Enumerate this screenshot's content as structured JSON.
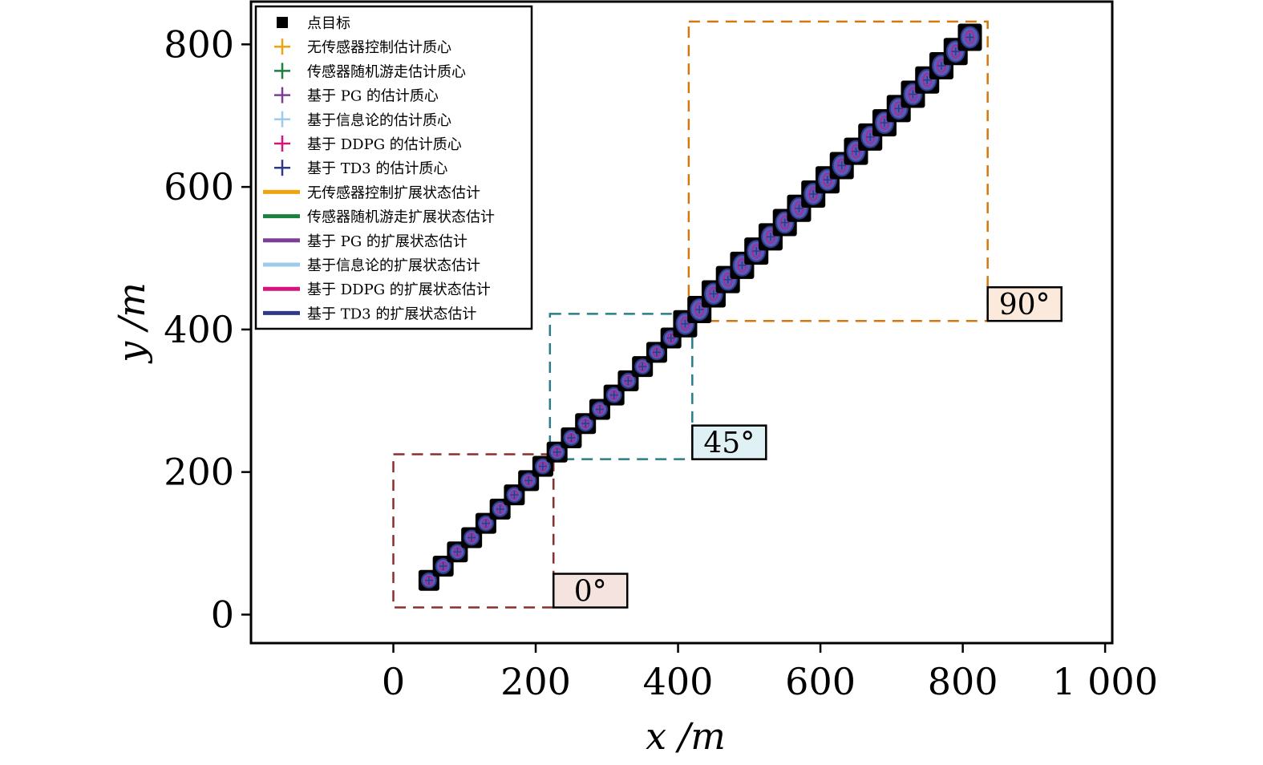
{
  "chart_data": {
    "type": "scatter",
    "xlabel": "x /m",
    "ylabel": "y /m",
    "xlim": [
      -200,
      1010
    ],
    "ylim": [
      -40,
      860
    ],
    "xticks": [
      0,
      200,
      400,
      600,
      800,
      1000
    ],
    "xtick_labels": [
      "0",
      "200",
      "400",
      "600",
      "800",
      "1 000"
    ],
    "yticks": [
      0,
      200,
      400,
      600,
      800
    ],
    "ytick_labels": [
      "0",
      "200",
      "400",
      "600",
      "800"
    ],
    "grid": false,
    "legend_position": "top-left",
    "legend": [
      {
        "label": "点目标",
        "marker": "square",
        "color": "#000000"
      },
      {
        "label": "无传感器控制估计质心",
        "marker": "plus",
        "color": "#f0a30a"
      },
      {
        "label": "传感器随机游走估计质心",
        "marker": "plus",
        "color": "#1a8040"
      },
      {
        "label": "基于 PG 的估计质心",
        "marker": "plus",
        "color": "#7b3f98"
      },
      {
        "label": "基于信息论的估计质心",
        "marker": "plus",
        "color": "#9ecbea"
      },
      {
        "label": "基于 DDPG 的估计质心",
        "marker": "plus",
        "color": "#d4147c"
      },
      {
        "label": "基于 TD3 的估计质心",
        "marker": "plus",
        "color": "#2e3a87"
      },
      {
        "label": "无传感器控制扩展状态估计",
        "marker": "line",
        "color": "#f0a30a"
      },
      {
        "label": "传感器随机游走扩展状态估计",
        "marker": "line",
        "color": "#1a8040"
      },
      {
        "label": "基于 PG 的扩展状态估计",
        "marker": "line",
        "color": "#7b3f98"
      },
      {
        "label": "基于信息论的扩展状态估计",
        "marker": "line",
        "color": "#9ecbea"
      },
      {
        "label": "基于 DDPG 的扩展状态估计",
        "marker": "line",
        "color": "#d4147c"
      },
      {
        "label": "基于 TD3 的扩展状态估计",
        "marker": "line",
        "color": "#2e3a87"
      }
    ],
    "track_x": [
      50,
      70,
      90,
      110,
      130,
      150,
      170,
      190,
      210,
      230,
      250,
      270,
      290,
      310,
      330,
      350,
      370,
      390,
      410,
      430,
      450,
      470,
      490,
      510,
      530,
      550,
      570,
      590,
      610,
      630,
      650,
      670,
      690,
      710,
      730,
      750,
      770,
      790,
      810
    ],
    "track_y": [
      48,
      68,
      88,
      108,
      128,
      148,
      168,
      188,
      208,
      228,
      248,
      268,
      288,
      308,
      328,
      348,
      368,
      388,
      408,
      428,
      450,
      470,
      490,
      510,
      530,
      550,
      570,
      590,
      610,
      630,
      650,
      670,
      690,
      710,
      730,
      750,
      770,
      790,
      810
    ],
    "regions": [
      {
        "label": "0°",
        "x_range": [
          0,
          225
        ],
        "y_range": [
          10,
          225
        ],
        "color": "#8b2e2e",
        "label_bg": "#f5e3df"
      },
      {
        "label": "45°",
        "x_range": [
          220,
          420
        ],
        "y_range": [
          218,
          422
        ],
        "color": "#2a7d8c",
        "label_bg": "#e0f1f6"
      },
      {
        "label": "90°",
        "x_range": [
          415,
          835
        ],
        "y_range": [
          412,
          832
        ],
        "color": "#d4770f",
        "label_bg": "#fbeadb"
      }
    ]
  }
}
